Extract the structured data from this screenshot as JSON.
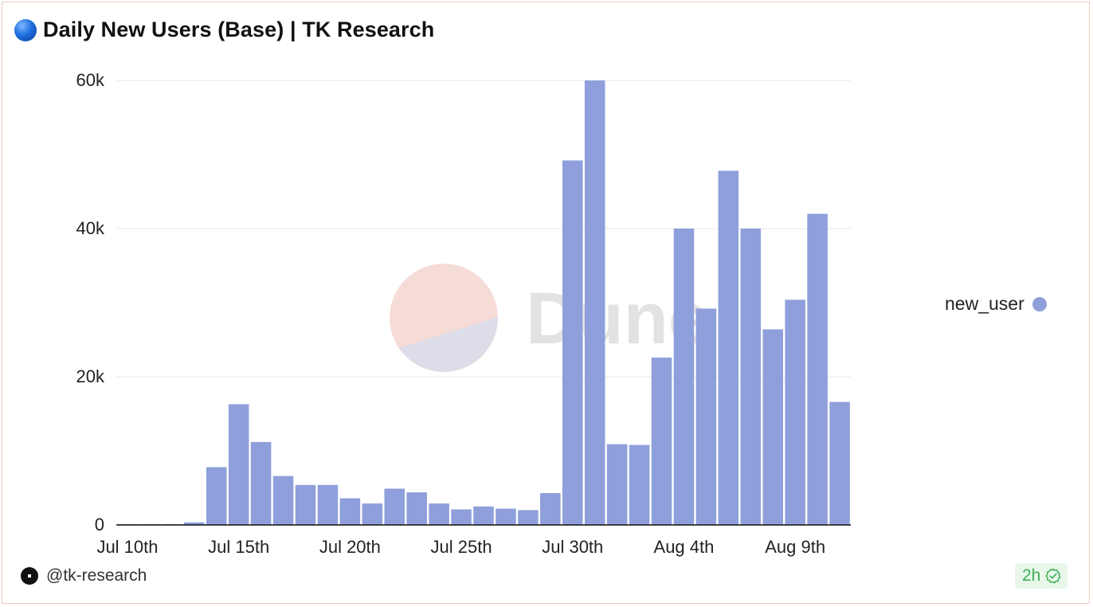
{
  "header": {
    "title": "Daily New Users (Base) | TK Research",
    "title_icon": "blue-circle-icon"
  },
  "watermark": {
    "text": "Dune"
  },
  "footer": {
    "author": "@tk-research",
    "author_icon": "dune-logo-icon",
    "freshness": "2h",
    "freshness_icon": "verified-check-icon"
  },
  "colors": {
    "bar": "#8e9fdb",
    "accent_green": "#3fae58"
  },
  "chart_data": {
    "type": "bar",
    "ylim": [
      0,
      60000
    ],
    "y_ticks": [
      {
        "value": 0,
        "label": "0"
      },
      {
        "value": 20000,
        "label": "20k"
      },
      {
        "value": 40000,
        "label": "40k"
      },
      {
        "value": 60000,
        "label": "60k"
      }
    ],
    "x_tick_labels": [
      "Jul 10th",
      "Jul 15th",
      "Jul 20th",
      "Jul 25th",
      "Jul 30th",
      "Aug 4th",
      "Aug 9th"
    ],
    "grid": true,
    "legend_position": "right",
    "series": [
      {
        "name": "new_user",
        "color": "#8e9fdb",
        "x": [
          "Jul 10th",
          "Jul 11th",
          "Jul 12th",
          "Jul 13th",
          "Jul 14th",
          "Jul 15th",
          "Jul 16th",
          "Jul 17th",
          "Jul 18th",
          "Jul 19th",
          "Jul 20th",
          "Jul 21st",
          "Jul 22nd",
          "Jul 23rd",
          "Jul 24th",
          "Jul 25th",
          "Jul 26th",
          "Jul 27th",
          "Jul 28th",
          "Jul 29th",
          "Jul 30th",
          "Jul 31st",
          "Aug 1st",
          "Aug 2nd",
          "Aug 3rd",
          "Aug 4th",
          "Aug 5th",
          "Aug 6th",
          "Aug 7th",
          "Aug 8th",
          "Aug 9th",
          "Aug 10th",
          "Aug 11th"
        ],
        "values": [
          30,
          40,
          50,
          350,
          7800,
          16300,
          11200,
          6600,
          5400,
          5400,
          3600,
          2900,
          4900,
          4400,
          2900,
          2100,
          2500,
          2200,
          2000,
          4300,
          49200,
          60000,
          10900,
          10800,
          22600,
          40000,
          29200,
          47800,
          40000,
          26400,
          30400,
          42000,
          16600
        ]
      }
    ]
  }
}
